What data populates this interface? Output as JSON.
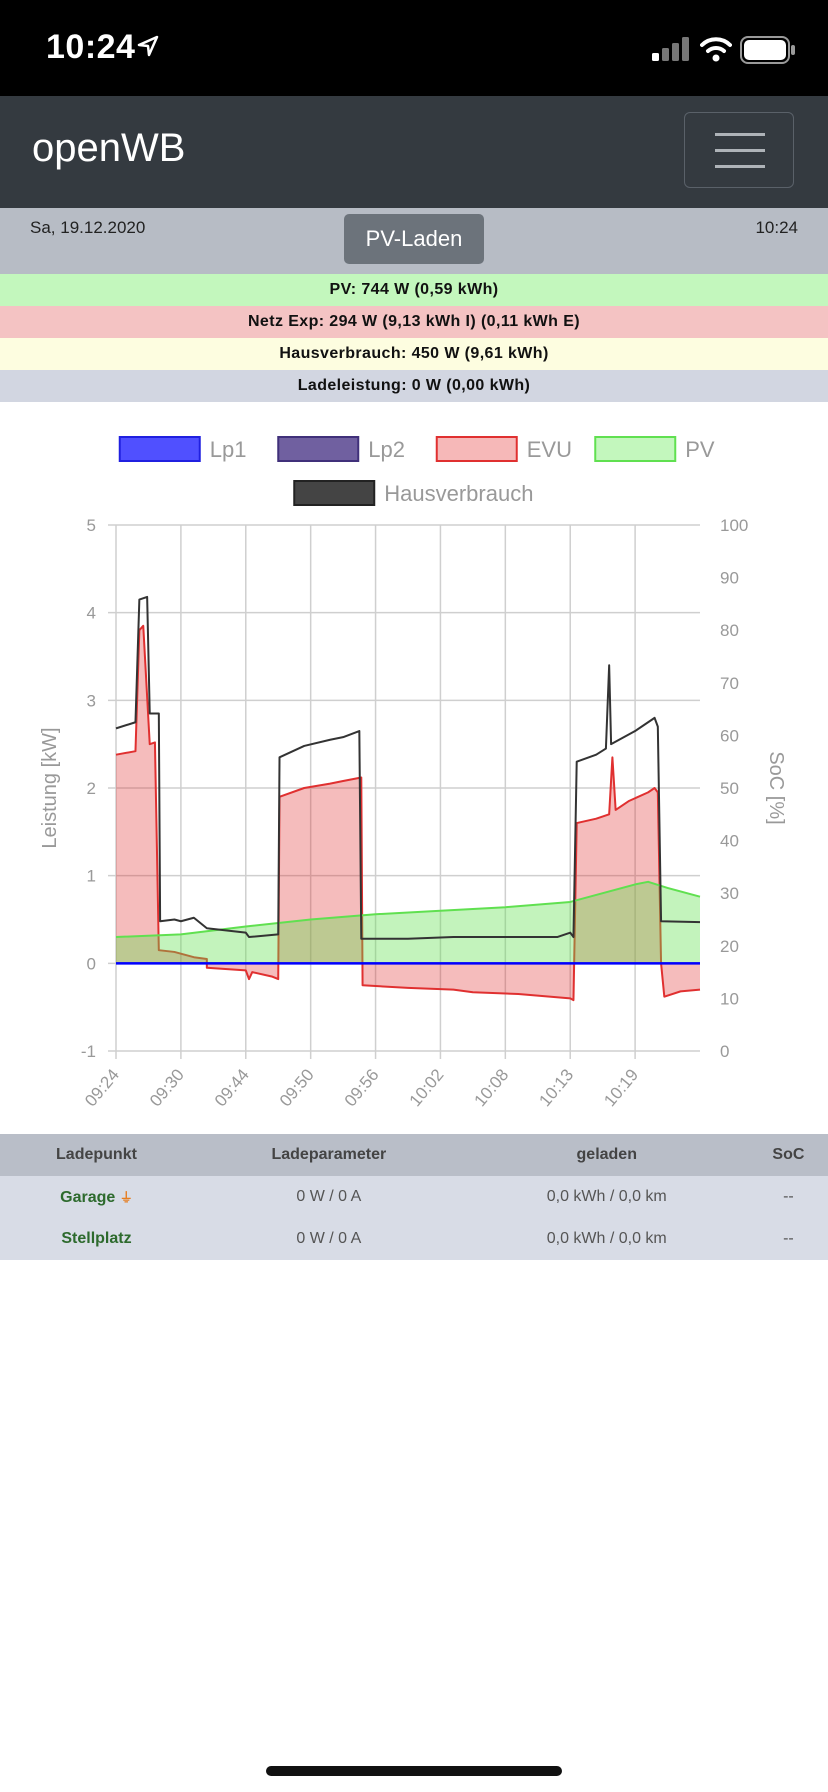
{
  "status_bar": {
    "time": "10:24"
  },
  "navbar": {
    "brand": "openWB"
  },
  "header": {
    "date": "Sa, 19.12.2020",
    "time": "10:24",
    "mode_button": "PV-Laden"
  },
  "info": {
    "pv": "PV: 744 W (0,59 kWh)",
    "netz": "Netz Exp: 294 W (9,13 kWh I) (0,11 kWh E)",
    "hausverbrauch": "Hausverbrauch: 450 W (9,61 kWh)",
    "ladeleistung": "Ladeleistung: 0 W (0,00 kWh)"
  },
  "colors": {
    "lp1": "#0000ff",
    "lp2": "#40307a",
    "evu": "#e03030",
    "pv": "#60e050",
    "haus": "#333333"
  },
  "chart_data": {
    "type": "area",
    "legend": [
      "Lp1",
      "Lp2",
      "EVU",
      "PV",
      "Hausverbrauch"
    ],
    "ylabel_left": "Leistung [kW]",
    "ylabel_right": "SoC [%]",
    "ylim_left": [
      -1,
      5
    ],
    "ylim_right": [
      0,
      100
    ],
    "yticks_left": [
      "5",
      "4",
      "3",
      "2",
      "1",
      "0",
      "-1"
    ],
    "yticks_right": [
      "100",
      "90",
      "80",
      "70",
      "60",
      "50",
      "40",
      "30",
      "20",
      "10",
      "0"
    ],
    "xticks": [
      "09:24",
      "09:30",
      "09:44",
      "09:50",
      "09:56",
      "10:02",
      "10:08",
      "10:13",
      "10:19"
    ],
    "x_range": [
      0,
      9
    ],
    "legend_position": "top",
    "grid": true,
    "series": [
      {
        "name": "Lp1",
        "points": [
          [
            0,
            0
          ],
          [
            9,
            0
          ]
        ]
      },
      {
        "name": "Lp2",
        "points": [
          [
            0,
            0
          ],
          [
            9,
            0
          ]
        ]
      },
      {
        "name": "EVU",
        "points": [
          [
            0,
            2.38
          ],
          [
            0.3,
            2.42
          ],
          [
            0.36,
            3.8
          ],
          [
            0.42,
            3.85
          ],
          [
            0.52,
            2.5
          ],
          [
            0.6,
            2.52
          ],
          [
            0.66,
            0.15
          ],
          [
            0.9,
            0.13
          ],
          [
            1.2,
            0.07
          ],
          [
            1.4,
            0.05
          ],
          [
            1.4,
            -0.05
          ],
          [
            2.0,
            -0.08
          ],
          [
            2.05,
            -0.18
          ],
          [
            2.1,
            -0.1
          ],
          [
            2.4,
            -0.15
          ],
          [
            2.5,
            -0.18
          ],
          [
            2.52,
            1.9
          ],
          [
            2.9,
            2.0
          ],
          [
            3.3,
            2.05
          ],
          [
            3.5,
            2.08
          ],
          [
            3.78,
            2.12
          ],
          [
            3.8,
            -0.25
          ],
          [
            4.5,
            -0.28
          ],
          [
            5.2,
            -0.3
          ],
          [
            5.5,
            -0.33
          ],
          [
            6.2,
            -0.35
          ],
          [
            7.0,
            -0.4
          ],
          [
            7.05,
            -0.42
          ],
          [
            7.1,
            1.6
          ],
          [
            7.4,
            1.65
          ],
          [
            7.6,
            1.7
          ],
          [
            7.65,
            2.35
          ],
          [
            7.7,
            1.75
          ],
          [
            7.9,
            1.85
          ],
          [
            8.2,
            1.95
          ],
          [
            8.3,
            2.0
          ],
          [
            8.35,
            1.95
          ],
          [
            8.4,
            0.0
          ],
          [
            8.45,
            -0.38
          ],
          [
            8.7,
            -0.32
          ],
          [
            9.0,
            -0.3
          ]
        ]
      },
      {
        "name": "PV",
        "points": [
          [
            0,
            0.3
          ],
          [
            1.0,
            0.33
          ],
          [
            2.0,
            0.42
          ],
          [
            3.0,
            0.5
          ],
          [
            4.0,
            0.56
          ],
          [
            5.0,
            0.6
          ],
          [
            6.0,
            0.64
          ],
          [
            7.0,
            0.7
          ],
          [
            7.5,
            0.8
          ],
          [
            8.0,
            0.9
          ],
          [
            8.2,
            0.93
          ],
          [
            8.5,
            0.86
          ],
          [
            9.0,
            0.76
          ]
        ]
      },
      {
        "name": "Hausverbrauch",
        "points": [
          [
            0,
            2.68
          ],
          [
            0.3,
            2.75
          ],
          [
            0.36,
            4.15
          ],
          [
            0.48,
            4.18
          ],
          [
            0.52,
            2.85
          ],
          [
            0.66,
            2.85
          ],
          [
            0.68,
            0.48
          ],
          [
            0.9,
            0.5
          ],
          [
            1.0,
            0.48
          ],
          [
            1.2,
            0.52
          ],
          [
            1.4,
            0.4
          ],
          [
            2.0,
            0.35
          ],
          [
            2.05,
            0.3
          ],
          [
            2.5,
            0.33
          ],
          [
            2.52,
            2.35
          ],
          [
            2.9,
            2.48
          ],
          [
            3.3,
            2.55
          ],
          [
            3.5,
            2.58
          ],
          [
            3.75,
            2.65
          ],
          [
            3.78,
            0.28
          ],
          [
            4.5,
            0.28
          ],
          [
            5.2,
            0.3
          ],
          [
            6.0,
            0.3
          ],
          [
            6.8,
            0.3
          ],
          [
            7.0,
            0.35
          ],
          [
            7.05,
            0.3
          ],
          [
            7.1,
            2.3
          ],
          [
            7.4,
            2.38
          ],
          [
            7.55,
            2.45
          ],
          [
            7.6,
            3.4
          ],
          [
            7.63,
            2.5
          ],
          [
            8.0,
            2.65
          ],
          [
            8.3,
            2.8
          ],
          [
            8.35,
            2.7
          ],
          [
            8.4,
            0.48
          ],
          [
            9.0,
            0.47
          ]
        ]
      }
    ]
  },
  "table": {
    "headers": [
      "Ladepunkt",
      "Ladeparameter",
      "geladen",
      "SoC"
    ],
    "rows": [
      {
        "name": "Garage",
        "plug_icon": "charging-plug-icon",
        "parameter": "0 W / 0 A",
        "geladen": "0,0 kWh / 0,0 km",
        "soc": "--"
      },
      {
        "name": "Stellplatz",
        "parameter": "0 W / 0 A",
        "geladen": "0,0 kWh / 0,0 km",
        "soc": "--"
      }
    ]
  }
}
